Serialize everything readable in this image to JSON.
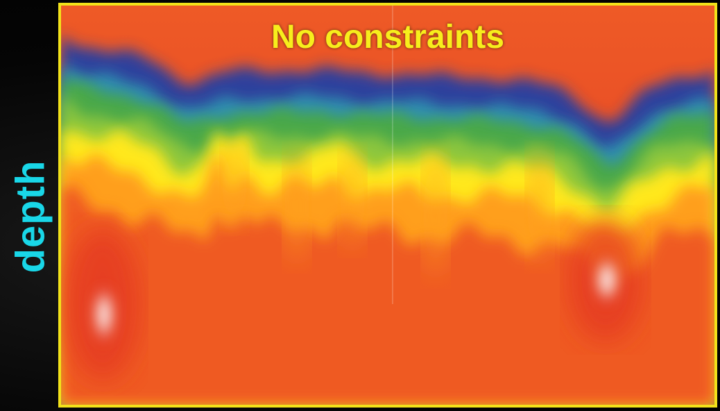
{
  "title": "No constraints",
  "ylabel": "depth",
  "colors": {
    "title": "#f7ee1c",
    "ylabel": "#19d7e8",
    "frame": "#f2e21a",
    "background": "#000000"
  },
  "colormap": [
    "#101010",
    "#2d3f9c",
    "#2e8fb0",
    "#4aa84a",
    "#8cc63c",
    "#ffe81a",
    "#ff9f1e",
    "#ef5a24",
    "#e33424",
    "#ffffff"
  ]
}
